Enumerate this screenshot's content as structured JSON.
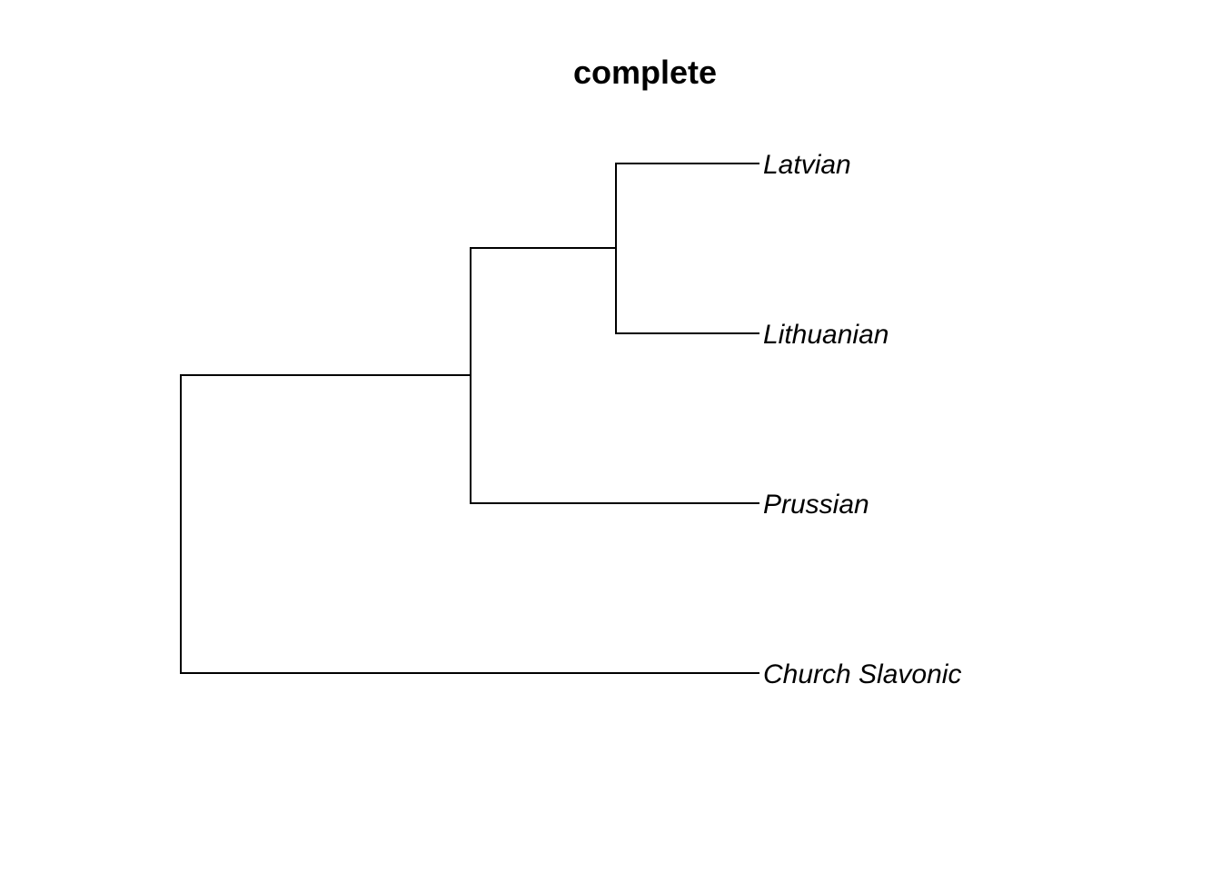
{
  "title": "complete",
  "tree": {
    "leaves": [
      "Latvian",
      "Lithuanian",
      "Prussian",
      "Church Slavonic"
    ],
    "merges": [
      {
        "left": "Latvian",
        "right": "Lithuanian",
        "level": 1
      },
      {
        "left": "merge-1",
        "right": "Prussian",
        "level": 2
      },
      {
        "left": "merge-2",
        "right": "Church Slavonic",
        "level": 4
      }
    ]
  },
  "style": {
    "line_color": "#000000",
    "text_color": "#000000",
    "background": "#ffffff"
  }
}
